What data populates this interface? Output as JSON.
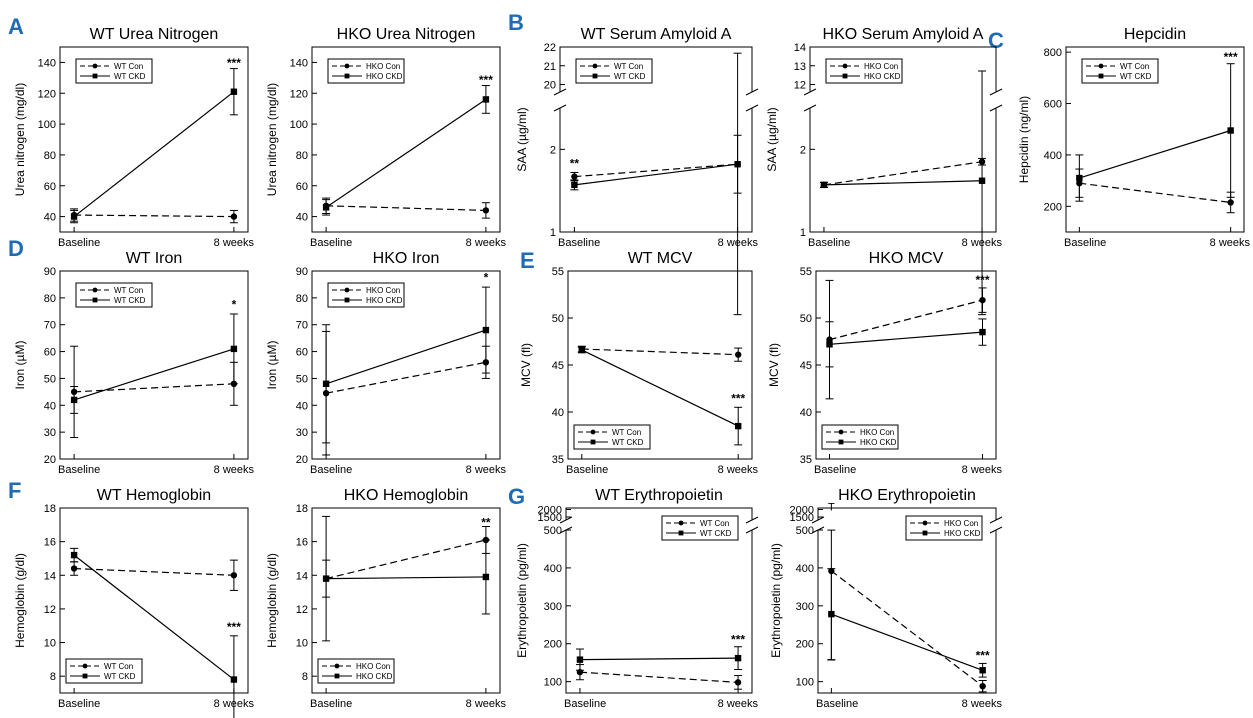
{
  "colors": {
    "panel_letter": "#1f6bb5",
    "ink": "#000000",
    "background": "#ffffff"
  },
  "panel_letters": [
    "A",
    "B",
    "C",
    "D",
    "E",
    "F",
    "G"
  ],
  "chart_data": [
    {
      "id": "wt-urea",
      "type": "line",
      "title": "WT Urea Nitrogen",
      "xlabel": "",
      "ylabel": "Urea nitrogen (mg/dl)",
      "categories": [
        "Baseline",
        "8 weeks"
      ],
      "ylim": [
        30,
        150
      ],
      "yticks": [
        40,
        60,
        80,
        100,
        120,
        140
      ],
      "legend": "top-left",
      "series": [
        {
          "name": "WT Con",
          "values": [
            41,
            40
          ],
          "error": [
            4,
            4
          ],
          "dash": true,
          "marker": "circle"
        },
        {
          "name": "WT CKD",
          "values": [
            40,
            121
          ],
          "error": [
            4,
            15
          ],
          "dash": false,
          "marker": "square"
        }
      ],
      "annotations": [
        {
          "text": "***",
          "category": 1,
          "y": 137
        }
      ]
    },
    {
      "id": "hko-urea",
      "type": "line",
      "title": "HKO Urea Nitrogen",
      "xlabel": "",
      "ylabel": "Urea nitrogen (mg/dl)",
      "categories": [
        "Baseline",
        "8 weeks"
      ],
      "ylim": [
        30,
        150
      ],
      "yticks": [
        40,
        60,
        80,
        100,
        120,
        140
      ],
      "legend": "top-left",
      "series": [
        {
          "name": "HKO Con",
          "values": [
            47,
            44
          ],
          "error": [
            5,
            5
          ],
          "dash": true,
          "marker": "circle"
        },
        {
          "name": "HKO CKD",
          "values": [
            46,
            116
          ],
          "error": [
            5,
            9
          ],
          "dash": false,
          "marker": "square"
        }
      ],
      "annotations": [
        {
          "text": "***",
          "category": 1,
          "y": 126
        }
      ]
    },
    {
      "id": "wt-saa",
      "type": "line",
      "title": "WT Serum Amyloid A",
      "xlabel": "",
      "ylabel": "SAA (µg/ml)",
      "categories": [
        "Baseline",
        "8 weeks"
      ],
      "broken_axis": true,
      "ylim_lower": [
        1,
        2.5
      ],
      "yticks_lower": [
        1,
        2
      ],
      "ylim_upper": [
        19.6,
        22
      ],
      "yticks_upper": [
        20,
        21,
        22
      ],
      "legend": "top-left",
      "series": [
        {
          "name": "WT Con",
          "values": [
            1.67,
            1.82
          ],
          "error": [
            0.05,
            0.35
          ],
          "dash": true,
          "marker": "circle"
        },
        {
          "name": "WT CKD",
          "values": [
            1.57,
            1.82
          ],
          "error": [
            0.06,
            19.85
          ],
          "dash": false,
          "marker": "square"
        }
      ],
      "annotations": [
        {
          "text": "**",
          "category": 0,
          "y": 1.78
        }
      ]
    },
    {
      "id": "hko-saa",
      "type": "line",
      "title": "HKO Serum Amyloid A",
      "xlabel": "",
      "ylabel": "SAA (µg/ml)",
      "categories": [
        "Baseline",
        "8 weeks"
      ],
      "broken_axis": true,
      "ylim_lower": [
        1,
        2.5
      ],
      "yticks_lower": [
        1,
        2
      ],
      "ylim_upper": [
        11.6,
        14
      ],
      "yticks_upper": [
        12,
        13,
        14
      ],
      "legend": "top-left",
      "series": [
        {
          "name": "HKO Con",
          "values": [
            1.57,
            1.85
          ],
          "error": [
            0.03,
            0.04
          ],
          "dash": true,
          "marker": "circle"
        },
        {
          "name": "HKO CKD",
          "values": [
            1.57,
            1.62
          ],
          "error": [
            0.03,
            11.1
          ],
          "dash": false,
          "marker": "square"
        }
      ],
      "annotations": []
    },
    {
      "id": "hepcidin",
      "type": "line",
      "title": "Hepcidin",
      "xlabel": "",
      "ylabel": "Hepcidin (ng/ml)",
      "categories": [
        "Baseline",
        "8 weeks"
      ],
      "ylim": [
        100,
        820
      ],
      "yticks": [
        200,
        400,
        600,
        800
      ],
      "legend": "top-left",
      "series": [
        {
          "name": "WT Con",
          "values": [
            290,
            215
          ],
          "error": [
            55,
            40
          ],
          "dash": true,
          "marker": "circle"
        },
        {
          "name": "WT CKD",
          "values": [
            310,
            495
          ],
          "error": [
            90,
            260
          ],
          "dash": false,
          "marker": "square"
        }
      ],
      "annotations": [
        {
          "text": "***",
          "category": 1,
          "y": 765
        }
      ]
    },
    {
      "id": "wt-iron",
      "type": "line",
      "title": "WT Iron",
      "xlabel": "",
      "ylabel": "Iron (µM)",
      "categories": [
        "Baseline",
        "8 weeks"
      ],
      "ylim": [
        20,
        90
      ],
      "yticks": [
        20,
        30,
        40,
        50,
        60,
        70,
        80,
        90
      ],
      "legend": "top-left",
      "series": [
        {
          "name": "WT Con",
          "values": [
            45,
            48
          ],
          "error": [
            17,
            8
          ],
          "dash": true,
          "marker": "circle"
        },
        {
          "name": "WT CKD",
          "values": [
            42,
            61
          ],
          "error": [
            5,
            13
          ],
          "dash": false,
          "marker": "square"
        }
      ],
      "annotations": [
        {
          "text": "*",
          "category": 1,
          "y": 76
        }
      ]
    },
    {
      "id": "hko-iron",
      "type": "line",
      "title": "HKO Iron",
      "xlabel": "",
      "ylabel": "Iron (µM)",
      "categories": [
        "Baseline",
        "8 weeks"
      ],
      "ylim": [
        20,
        90
      ],
      "yticks": [
        20,
        30,
        40,
        50,
        60,
        70,
        80,
        90
      ],
      "legend": "top-left",
      "series": [
        {
          "name": "HKO Con",
          "values": [
            44.5,
            56
          ],
          "error": [
            23,
            6
          ],
          "dash": true,
          "marker": "circle"
        },
        {
          "name": "HKO CKD",
          "values": [
            48,
            68
          ],
          "error": [
            22,
            16
          ],
          "dash": false,
          "marker": "square"
        }
      ],
      "annotations": [
        {
          "text": "*",
          "category": 1,
          "y": 86
        }
      ]
    },
    {
      "id": "wt-mcv",
      "type": "line",
      "title": "WT MCV",
      "xlabel": "",
      "ylabel": "MCV (fl)",
      "categories": [
        "Baseline",
        "8 weeks"
      ],
      "ylim": [
        35,
        55
      ],
      "yticks": [
        35,
        40,
        45,
        50,
        55
      ],
      "legend": "bottom-left",
      "series": [
        {
          "name": "WT Con",
          "values": [
            46.7,
            46.1
          ],
          "error": [
            0.3,
            0.7
          ],
          "dash": true,
          "marker": "circle"
        },
        {
          "name": "WT CKD",
          "values": [
            46.6,
            38.5
          ],
          "error": [
            0.3,
            2.0
          ],
          "dash": false,
          "marker": "square"
        }
      ],
      "annotations": [
        {
          "text": "***",
          "category": 1,
          "y": 41
        }
      ]
    },
    {
      "id": "hko-mcv",
      "type": "line",
      "title": "HKO MCV",
      "xlabel": "",
      "ylabel": "MCV (fl)",
      "categories": [
        "Baseline",
        "8 weeks"
      ],
      "ylim": [
        35,
        55
      ],
      "yticks": [
        35,
        40,
        45,
        50,
        55
      ],
      "legend": "bottom-left",
      "series": [
        {
          "name": "HKO Con",
          "values": [
            47.7,
            51.9
          ],
          "error": [
            6.3,
            1.3
          ],
          "dash": true,
          "marker": "circle"
        },
        {
          "name": "HKO CKD",
          "values": [
            47.2,
            48.5
          ],
          "error": [
            2.4,
            1.4
          ],
          "dash": false,
          "marker": "square"
        }
      ],
      "annotations": [
        {
          "text": "***",
          "category": 1,
          "y": 53.6
        }
      ]
    },
    {
      "id": "wt-hb",
      "type": "line",
      "title": "WT Hemoglobin",
      "xlabel": "",
      "ylabel": "Hemoglobin (g/dl)",
      "categories": [
        "Baseline",
        "8 weeks"
      ],
      "ylim": [
        7,
        18
      ],
      "yticks": [
        8,
        10,
        12,
        14,
        16,
        18
      ],
      "legend": "bottom-left",
      "series": [
        {
          "name": "WT Con",
          "values": [
            14.4,
            14.0
          ],
          "error": [
            0.4,
            0.9
          ],
          "dash": true,
          "marker": "circle"
        },
        {
          "name": "WT CKD",
          "values": [
            15.2,
            7.8
          ],
          "error": [
            0.4,
            2.6
          ],
          "dash": false,
          "marker": "square"
        }
      ],
      "annotations": [
        {
          "text": "***",
          "category": 1,
          "y": 10.7
        }
      ]
    },
    {
      "id": "hko-hb",
      "type": "line",
      "title": "HKO Hemoglobin",
      "xlabel": "",
      "ylabel": "Hemoglobin (g/dl)",
      "categories": [
        "Baseline",
        "8 weeks"
      ],
      "ylim": [
        7,
        18
      ],
      "yticks": [
        8,
        10,
        12,
        14,
        16,
        18
      ],
      "legend": "bottom-left",
      "series": [
        {
          "name": "HKO Con",
          "values": [
            13.8,
            16.1
          ],
          "error": [
            1.1,
            0.8
          ],
          "dash": true,
          "marker": "circle"
        },
        {
          "name": "HKO CKD",
          "values": [
            13.8,
            13.9
          ],
          "error": [
            3.7,
            2.2
          ],
          "dash": false,
          "marker": "square"
        }
      ],
      "annotations": [
        {
          "text": "**",
          "category": 1,
          "y": 16.9
        }
      ]
    },
    {
      "id": "wt-epo",
      "type": "line",
      "title": "WT Erythropoietin",
      "xlabel": "",
      "ylabel": "Erythropoietin (pg/ml)",
      "categories": [
        "Baseline",
        "8 weeks"
      ],
      "broken_axis": true,
      "ylim_lower": [
        70,
        500
      ],
      "yticks_lower": [
        100,
        200,
        300,
        400,
        500
      ],
      "ylim_upper": [
        1300,
        2100
      ],
      "yticks_upper": [
        1500,
        2000
      ],
      "legend": "top-right",
      "series": [
        {
          "name": "WT Con",
          "values": [
            125,
            98
          ],
          "error": [
            20,
            18
          ],
          "dash": true,
          "marker": "circle"
        },
        {
          "name": "WT CKD",
          "values": [
            158,
            162
          ],
          "error": [
            28,
            30
          ],
          "dash": false,
          "marker": "square"
        }
      ],
      "annotations": [
        {
          "text": "***",
          "category": 1,
          "y": 200
        }
      ]
    },
    {
      "id": "hko-epo",
      "type": "line",
      "title": "HKO Erythropoietin",
      "xlabel": "",
      "ylabel": "Erythropoietin (pg/ml)",
      "categories": [
        "Baseline",
        "8 weeks"
      ],
      "broken_axis": true,
      "ylim_lower": [
        70,
        500
      ],
      "yticks_lower": [
        100,
        200,
        300,
        400,
        500
      ],
      "ylim_upper": [
        1300,
        2100
      ],
      "yticks_upper": [
        1500,
        2000
      ],
      "legend": "top-right",
      "series": [
        {
          "name": "HKO Con",
          "values": [
            392,
            88
          ],
          "error": [
            235,
            15
          ],
          "dash": true,
          "marker": "circle"
        },
        {
          "name": "HKO CKD",
          "values": [
            278,
            130
          ],
          "error": [
            120,
            18
          ],
          "dash": false,
          "marker": "square"
        }
      ],
      "annotations": [
        {
          "text": "***",
          "category": 1,
          "y": 158
        },
        {
          "text": "T",
          "category": 0,
          "y": 1950
        }
      ]
    }
  ]
}
